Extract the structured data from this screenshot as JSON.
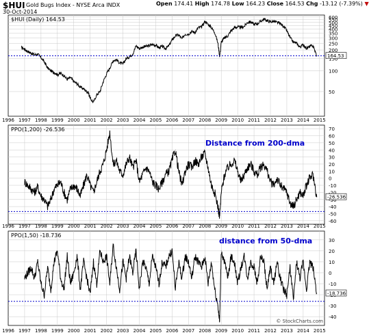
{
  "header": {
    "symbol": "$HUI",
    "name": "Gold Bugs Index - NYSE Arca INDX",
    "date": "30-Oct-2014",
    "open_label": "Open",
    "open": "174.41",
    "high_label": "High",
    "high": "174.78",
    "low_label": "Low",
    "low": "164.23",
    "close_label": "Close",
    "close": "164.53",
    "chg_label": "Chg",
    "chg": "-13.12 (-7.39%)",
    "chg_arrow": "▼",
    "watermark": "© StockCharts.com"
  },
  "x_axis": {
    "labels": [
      "1996",
      "1997",
      "1998",
      "1999",
      "2000",
      "2001",
      "2002",
      "2003",
      "2004",
      "2005",
      "2006",
      "2007",
      "2008",
      "2009",
      "2010",
      "2011",
      "2012",
      "2013",
      "2014",
      "2015"
    ]
  },
  "colors": {
    "line": "#000000",
    "grid": "#c8c8c8",
    "reference": "#0000cc",
    "annotation": "#0000cc"
  },
  "chart_data": [
    {
      "type": "line",
      "legend": "$HUI (Daily) 164.53",
      "scale": "log",
      "ylim": [
        22,
        640
      ],
      "yticks": [
        50,
        100,
        150,
        200,
        250,
        300,
        350,
        400,
        450,
        500,
        550,
        600
      ],
      "last_value_label": "164.53",
      "reference_line": 164.53,
      "x": [
        1996.8,
        1997.0,
        1997.2,
        1997.4,
        1997.6,
        1997.8,
        1998.0,
        1998.2,
        1998.4,
        1998.6,
        1998.8,
        1999.0,
        1999.2,
        1999.4,
        1999.6,
        1999.8,
        2000.0,
        2000.2,
        2000.4,
        2000.6,
        2000.8,
        2000.9,
        2001.0,
        2001.2,
        2001.4,
        2001.6,
        2001.8,
        2002.0,
        2002.2,
        2002.4,
        2002.6,
        2002.8,
        2003.0,
        2003.2,
        2003.4,
        2003.6,
        2003.8,
        2004.0,
        2004.2,
        2004.4,
        2004.6,
        2004.8,
        2005.0,
        2005.2,
        2005.4,
        2005.6,
        2005.8,
        2006.0,
        2006.2,
        2006.4,
        2006.6,
        2006.8,
        2007.0,
        2007.2,
        2007.4,
        2007.6,
        2007.8,
        2008.0,
        2008.2,
        2008.4,
        2008.6,
        2008.8,
        2008.9,
        2009.0,
        2009.2,
        2009.4,
        2009.6,
        2009.8,
        2010.0,
        2010.2,
        2010.4,
        2010.6,
        2010.8,
        2011.0,
        2011.2,
        2011.4,
        2011.6,
        2011.8,
        2012.0,
        2012.2,
        2012.4,
        2012.6,
        2012.8,
        2013.0,
        2013.2,
        2013.4,
        2013.6,
        2013.8,
        2014.0,
        2014.2,
        2014.4,
        2014.6,
        2014.83
      ],
      "values": [
        220,
        205,
        190,
        180,
        170,
        175,
        155,
        135,
        110,
        100,
        95,
        88,
        92,
        85,
        75,
        80,
        70,
        65,
        58,
        55,
        50,
        48,
        40,
        35,
        45,
        50,
        70,
        90,
        110,
        140,
        145,
        130,
        125,
        150,
        160,
        175,
        230,
        210,
        220,
        225,
        230,
        240,
        235,
        215,
        225,
        210,
        230,
        280,
        320,
        330,
        290,
        340,
        340,
        370,
        360,
        420,
        430,
        520,
        470,
        420,
        360,
        250,
        160,
        260,
        300,
        320,
        380,
        420,
        430,
        420,
        440,
        500,
        510,
        470,
        480,
        520,
        560,
        530,
        510,
        520,
        500,
        480,
        440,
        380,
        300,
        260,
        250,
        220,
        240,
        210,
        225,
        230,
        164.53
      ]
    },
    {
      "type": "line",
      "legend": "PPO(1,200) -26.536",
      "annotation": "Distance from 200-dma",
      "ylim": [
        -65,
        75
      ],
      "yticks": [
        -60,
        -50,
        -40,
        -30,
        -20,
        -10,
        0,
        10,
        20,
        30,
        40,
        50,
        60,
        70
      ],
      "last_value_label": "-26.536",
      "reference_line": -47,
      "x": [
        1997.0,
        1997.2,
        1997.4,
        1997.6,
        1997.8,
        1998.0,
        1998.2,
        1998.4,
        1998.6,
        1998.8,
        1999.0,
        1999.2,
        1999.4,
        1999.6,
        1999.8,
        2000.0,
        2000.2,
        2000.4,
        2000.6,
        2000.8,
        2001.0,
        2001.2,
        2001.4,
        2001.6,
        2001.8,
        2002.0,
        2002.2,
        2002.4,
        2002.6,
        2002.8,
        2003.0,
        2003.2,
        2003.4,
        2003.6,
        2003.8,
        2004.0,
        2004.2,
        2004.4,
        2004.6,
        2004.8,
        2005.0,
        2005.2,
        2005.4,
        2005.6,
        2005.8,
        2006.0,
        2006.2,
        2006.4,
        2006.6,
        2006.8,
        2007.0,
        2007.2,
        2007.4,
        2007.6,
        2007.8,
        2008.0,
        2008.2,
        2008.4,
        2008.6,
        2008.8,
        2008.9,
        2009.0,
        2009.2,
        2009.4,
        2009.6,
        2009.8,
        2010.0,
        2010.2,
        2010.4,
        2010.6,
        2010.8,
        2011.0,
        2011.2,
        2011.4,
        2011.6,
        2011.8,
        2012.0,
        2012.2,
        2012.4,
        2012.6,
        2012.8,
        2013.0,
        2013.2,
        2013.4,
        2013.6,
        2013.8,
        2014.0,
        2014.2,
        2014.4,
        2014.6,
        2014.83
      ],
      "values": [
        -5,
        -10,
        -15,
        -20,
        -12,
        -25,
        -30,
        -40,
        -30,
        -15,
        -10,
        -5,
        -20,
        -30,
        -15,
        -10,
        -15,
        -25,
        -10,
        5,
        -10,
        -20,
        -5,
        10,
        20,
        40,
        65,
        20,
        25,
        10,
        5,
        20,
        30,
        15,
        25,
        -5,
        5,
        15,
        10,
        -5,
        -10,
        -15,
        -5,
        5,
        10,
        25,
        40,
        10,
        -10,
        10,
        20,
        15,
        25,
        20,
        30,
        35,
        15,
        -10,
        -20,
        -40,
        -55,
        -20,
        5,
        15,
        20,
        25,
        10,
        -5,
        5,
        15,
        20,
        10,
        5,
        15,
        20,
        10,
        -5,
        -10,
        0,
        -10,
        -15,
        -20,
        -35,
        -40,
        -30,
        -20,
        -25,
        -10,
        0,
        5,
        -26.536
      ]
    },
    {
      "type": "line",
      "legend": "PPO(1,50) -18.736",
      "annotation": "distance from 50-dma",
      "ylim": [
        -48,
        38
      ],
      "yticks": [
        -40,
        -30,
        -20,
        -10,
        0,
        10,
        20,
        30
      ],
      "last_value_label": "-18.736",
      "reference_line": -26,
      "x": [
        1997.0,
        1997.2,
        1997.4,
        1997.6,
        1997.8,
        1998.0,
        1998.2,
        1998.4,
        1998.6,
        1998.8,
        1999.0,
        1999.2,
        1999.4,
        1999.6,
        1999.8,
        2000.0,
        2000.2,
        2000.4,
        2000.6,
        2000.8,
        2001.0,
        2001.2,
        2001.4,
        2001.6,
        2001.8,
        2002.0,
        2002.2,
        2002.4,
        2002.6,
        2002.8,
        2003.0,
        2003.2,
        2003.4,
        2003.6,
        2003.8,
        2004.0,
        2004.2,
        2004.4,
        2004.6,
        2004.8,
        2005.0,
        2005.2,
        2005.4,
        2005.6,
        2005.8,
        2006.0,
        2006.2,
        2006.4,
        2006.6,
        2006.8,
        2007.0,
        2007.2,
        2007.4,
        2007.6,
        2007.8,
        2008.0,
        2008.2,
        2008.4,
        2008.6,
        2008.8,
        2008.9,
        2009.0,
        2009.2,
        2009.4,
        2009.6,
        2009.8,
        2010.0,
        2010.2,
        2010.4,
        2010.6,
        2010.8,
        2011.0,
        2011.2,
        2011.4,
        2011.6,
        2011.8,
        2012.0,
        2012.2,
        2012.4,
        2012.6,
        2012.8,
        2013.0,
        2013.2,
        2013.4,
        2013.6,
        2013.8,
        2014.0,
        2014.2,
        2014.4,
        2014.6,
        2014.83
      ],
      "values": [
        -5,
        0,
        5,
        -5,
        10,
        -10,
        -20,
        5,
        -15,
        10,
        20,
        -5,
        -15,
        15,
        -10,
        0,
        15,
        -15,
        10,
        -5,
        -20,
        10,
        -10,
        20,
        10,
        15,
        -10,
        25,
        5,
        -15,
        10,
        -5,
        15,
        0,
        20,
        -15,
        10,
        5,
        -10,
        15,
        5,
        -10,
        10,
        5,
        15,
        20,
        -15,
        10,
        -5,
        15,
        10,
        -5,
        15,
        10,
        5,
        15,
        -10,
        10,
        -15,
        -30,
        -45,
        20,
        10,
        -5,
        15,
        10,
        -10,
        5,
        15,
        -5,
        10,
        5,
        -10,
        15,
        10,
        -15,
        5,
        -10,
        10,
        -5,
        -15,
        -20,
        5,
        -25,
        10,
        -5,
        10,
        -15,
        10,
        5,
        -18.736
      ]
    }
  ]
}
